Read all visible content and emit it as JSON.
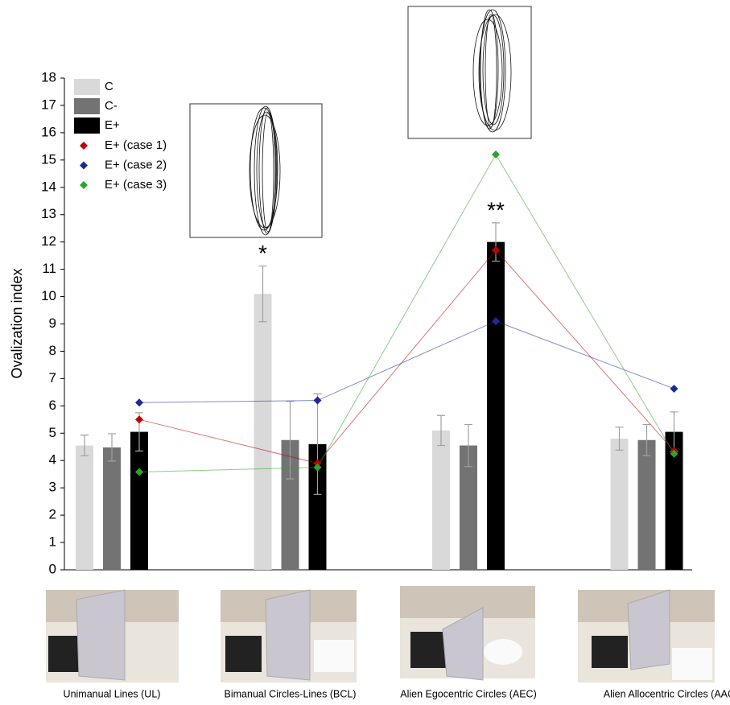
{
  "chart_data": {
    "type": "bar",
    "y_label": "Ovalization index",
    "categories": [
      "Unimanual Lines (UL)",
      "Bimanual Circles-Lines (BCL)",
      "Alien Egocentric Circles (AEC)",
      "Alien Allocentric Circles (AAC)"
    ],
    "ylim": [
      0,
      18
    ],
    "yticks": [
      0,
      1,
      2,
      3,
      4,
      5,
      6,
      7,
      8,
      9,
      10,
      11,
      12,
      13,
      14,
      15,
      16,
      17,
      18
    ],
    "series": [
      {
        "name": "C",
        "color": "#d9d9d9",
        "values": [
          4.55,
          10.1,
          5.1,
          4.8
        ],
        "errors": [
          0.38,
          1.02,
          0.55,
          0.42
        ],
        "markers": [
          null,
          "*",
          null,
          null
        ]
      },
      {
        "name": "C-",
        "color": "#737373",
        "values": [
          4.48,
          4.75,
          4.55,
          4.75
        ],
        "errors": [
          0.5,
          1.42,
          0.77,
          0.57
        ],
        "markers": [
          null,
          null,
          null,
          null
        ]
      },
      {
        "name": "E+",
        "color": "#000000",
        "values": [
          5.05,
          4.6,
          12.0,
          5.05
        ],
        "errors": [
          0.7,
          1.84,
          0.7,
          0.73
        ],
        "markers": [
          null,
          null,
          "**",
          null
        ]
      }
    ],
    "cases": [
      {
        "name": "E+ (case 1)",
        "color": "#c00000",
        "values": [
          5.5,
          3.9,
          11.7,
          4.35
        ]
      },
      {
        "name": "E+ (case 2)",
        "color": "#1a2a9c",
        "values": [
          6.12,
          6.2,
          9.1,
          6.63
        ]
      },
      {
        "name": "E+ (case 3)",
        "color": "#2aa52a",
        "values": [
          3.58,
          3.75,
          15.2,
          4.25
        ]
      }
    ]
  }
}
